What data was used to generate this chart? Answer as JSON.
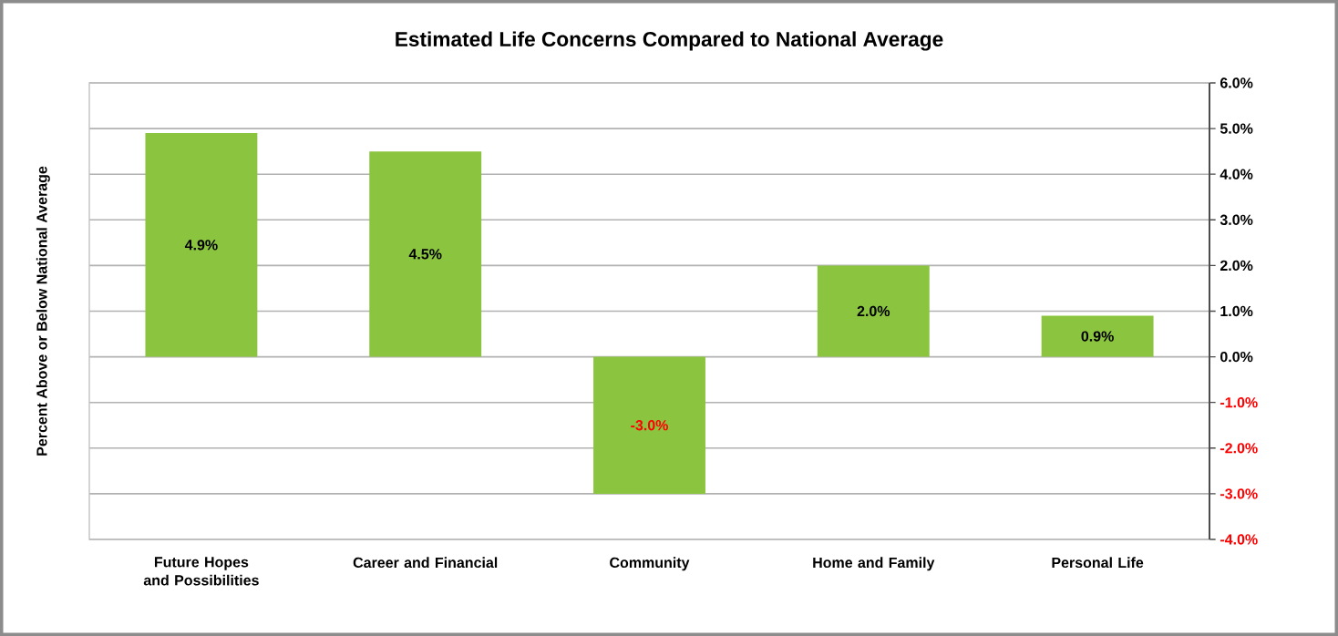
{
  "chart_data": {
    "type": "bar",
    "title": "Estimated Life Concerns Compared to National Average",
    "ylabel": "Percent Above or Below National Average",
    "categories": [
      "Future Hopes and Possibilities",
      "Career and Financial",
      "Community",
      "Home and Family",
      "Personal Life"
    ],
    "values": [
      4.9,
      4.5,
      -3.0,
      2.0,
      0.9
    ],
    "value_labels": [
      "4.9%",
      "4.5%",
      "-3.0%",
      "2.0%",
      "0.9%"
    ],
    "color": "#8bc540",
    "ylim": [
      -4,
      6
    ],
    "yticks": [
      {
        "value": 6,
        "label": "6.0%"
      },
      {
        "value": 5,
        "label": "5.0%"
      },
      {
        "value": 4,
        "label": "4.0%"
      },
      {
        "value": 3,
        "label": "3.0%"
      },
      {
        "value": 2,
        "label": "2.0%"
      },
      {
        "value": 1,
        "label": "1.0%"
      },
      {
        "value": 0,
        "label": "0.0%"
      },
      {
        "value": -1,
        "label": "-1.0%"
      },
      {
        "value": -2,
        "label": "-2.0%"
      },
      {
        "value": -3,
        "label": "-3.0%"
      },
      {
        "value": -4,
        "label": "-4.0%"
      }
    ],
    "grid": "y"
  }
}
